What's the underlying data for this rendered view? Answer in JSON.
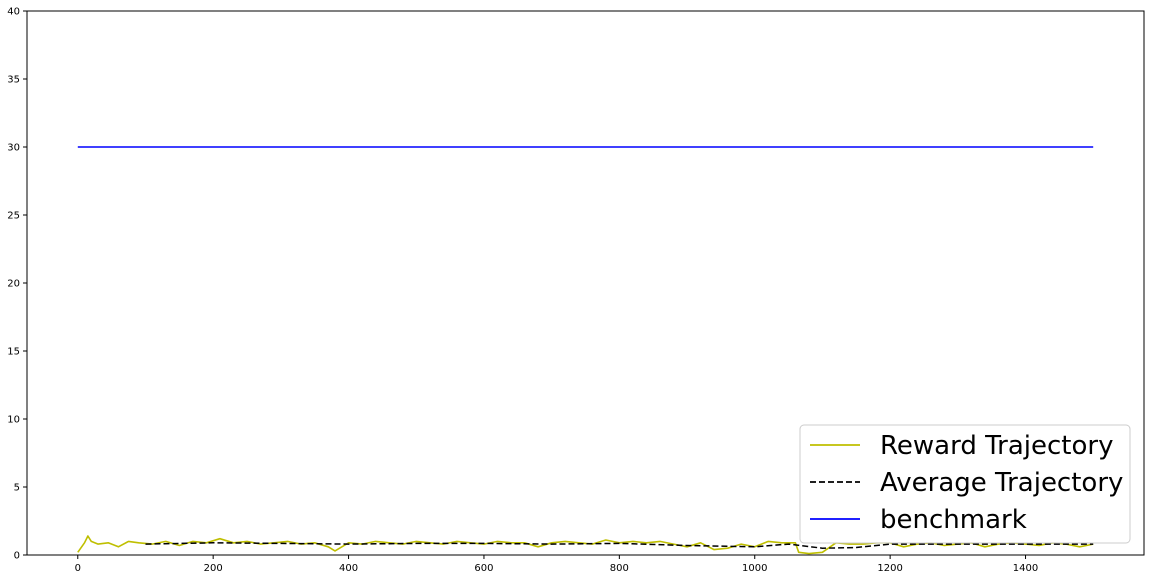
{
  "chart_data": {
    "type": "line",
    "title": "",
    "xlabel": "",
    "ylabel": "",
    "xlim": [
      -75,
      1575
    ],
    "ylim": [
      0,
      40
    ],
    "xticks": [
      0,
      200,
      400,
      600,
      800,
      1000,
      1200,
      1400
    ],
    "yticks": [
      0,
      5,
      10,
      15,
      20,
      25,
      30,
      35,
      40
    ],
    "grid": false,
    "legend_position": "lower-right",
    "series": [
      {
        "name": "Reward Trajectory",
        "color": "#bfbf00",
        "style": "solid",
        "x": [
          0,
          10,
          15,
          20,
          30,
          45,
          60,
          75,
          90,
          110,
          130,
          150,
          170,
          190,
          210,
          230,
          250,
          270,
          290,
          310,
          330,
          350,
          370,
          380,
          400,
          420,
          440,
          460,
          480,
          500,
          520,
          540,
          560,
          580,
          600,
          620,
          640,
          660,
          680,
          700,
          720,
          740,
          760,
          780,
          800,
          820,
          840,
          860,
          880,
          900,
          920,
          940,
          960,
          980,
          1000,
          1020,
          1040,
          1060,
          1065,
          1080,
          1100,
          1120,
          1140,
          1160,
          1180,
          1200,
          1220,
          1240,
          1260,
          1280,
          1300,
          1320,
          1340,
          1360,
          1380,
          1400,
          1420,
          1440,
          1460,
          1480,
          1500
        ],
        "y": [
          0.2,
          0.9,
          1.4,
          1.0,
          0.8,
          0.9,
          0.6,
          1.0,
          0.9,
          0.8,
          1.0,
          0.7,
          1.0,
          0.9,
          1.2,
          0.9,
          1.0,
          0.8,
          0.9,
          1.0,
          0.8,
          0.9,
          0.6,
          0.3,
          0.9,
          0.8,
          1.0,
          0.9,
          0.8,
          1.0,
          0.9,
          0.8,
          1.0,
          0.9,
          0.8,
          1.0,
          0.9,
          0.9,
          0.6,
          0.9,
          1.0,
          0.9,
          0.8,
          1.1,
          0.9,
          1.0,
          0.9,
          1.0,
          0.8,
          0.6,
          0.9,
          0.4,
          0.5,
          0.8,
          0.6,
          1.0,
          0.9,
          0.9,
          0.2,
          0.1,
          0.2,
          0.9,
          0.8,
          0.8,
          0.9,
          0.9,
          0.6,
          0.8,
          0.9,
          0.7,
          0.8,
          0.9,
          0.6,
          0.8,
          0.9,
          0.8,
          0.7,
          0.9,
          0.8,
          0.6,
          0.8
        ]
      },
      {
        "name": "Average Trajectory",
        "color": "#000000",
        "style": "dashed",
        "x": [
          100,
          200,
          300,
          400,
          500,
          600,
          700,
          800,
          900,
          1000,
          1050,
          1100,
          1150,
          1200,
          1300,
          1400,
          1500
        ],
        "y": [
          0.8,
          0.9,
          0.85,
          0.8,
          0.85,
          0.85,
          0.8,
          0.85,
          0.7,
          0.6,
          0.8,
          0.5,
          0.55,
          0.8,
          0.8,
          0.8,
          0.8
        ]
      },
      {
        "name": "benchmark",
        "color": "#0000ff",
        "style": "solid",
        "x": [
          0,
          1500
        ],
        "y": [
          30,
          30
        ]
      }
    ]
  }
}
